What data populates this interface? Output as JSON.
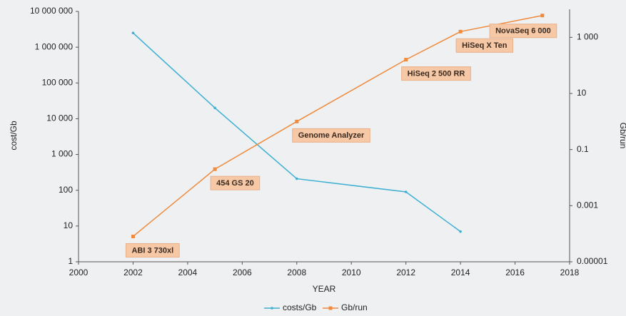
{
  "chart_data": {
    "type": "line",
    "log_scale": true,
    "x_label": "YEAR",
    "y_label": "cost/Gb",
    "y2_label": "Gb/run",
    "xlim": [
      2000,
      2018
    ],
    "xticks": [
      2000,
      2002,
      2004,
      2006,
      2008,
      2010,
      2012,
      2014,
      2016,
      2018
    ],
    "ylim": [
      1,
      10000000
    ],
    "yticks": [
      1,
      10,
      100,
      {
        "value": 1000,
        "label": "1 000"
      },
      {
        "value": 10000,
        "label": "10 000"
      },
      {
        "value": 100000,
        "label": "100 000"
      },
      {
        "value": 1000000,
        "label": "1 000 000"
      },
      {
        "value": 10000000,
        "label": "10 000 000"
      }
    ],
    "y2lim": [
      1e-05,
      10000
    ],
    "y2ticks": [
      {
        "value": 1e-05,
        "label": "0.00001"
      },
      0.001,
      0.1,
      10,
      {
        "value": 1000,
        "label": "1 000"
      }
    ],
    "series": [
      {
        "name": "costs/Gb",
        "color": "#3fb0d4",
        "x": [
          2002,
          2005,
          2008,
          2012,
          2014
        ],
        "values": [
          2500000,
          20000,
          210,
          90,
          7
        ]
      },
      {
        "name": "Gb/run",
        "color": "#f08a3c",
        "axis": "y2",
        "x": [
          2002,
          2005,
          2008,
          2012,
          2014,
          2017
        ],
        "values": [
          8e-05,
          0.02,
          1,
          160,
          1600,
          6000
        ],
        "point_labels": [
          "ABI 3 730xl",
          "454 GS 20",
          "Genome Analyzer",
          "HiSeq 2 500 RR",
          "HiSeq X Ten",
          "NovaSeq 6 000"
        ]
      }
    ]
  }
}
